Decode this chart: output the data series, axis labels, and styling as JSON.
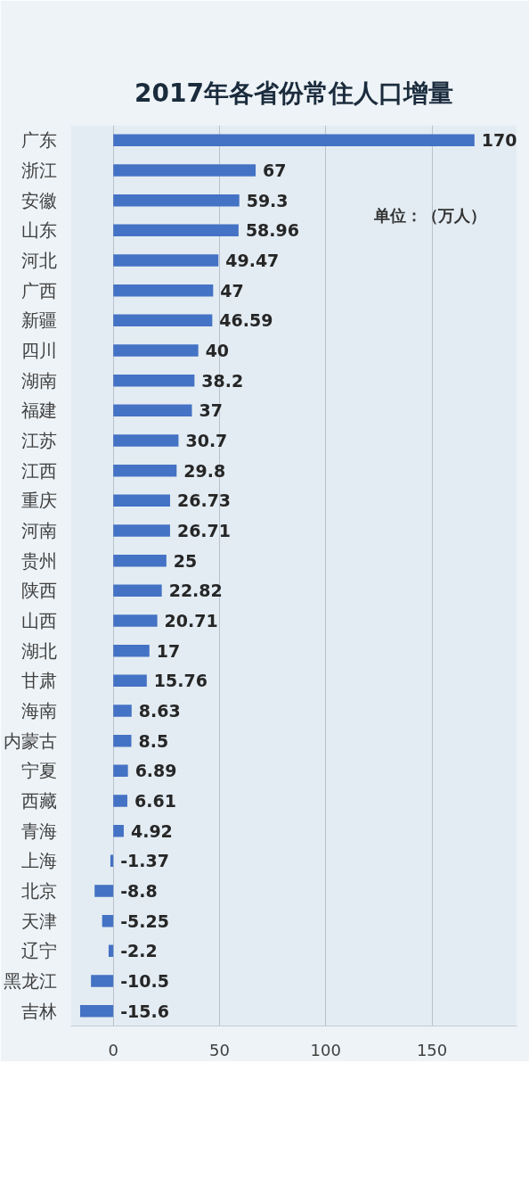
{
  "chart_data": {
    "type": "bar",
    "orientation": "horizontal",
    "title": "2017年各省份常住人口增量",
    "annotations": [
      "单位：（万人）"
    ],
    "categories": [
      "广东",
      "浙江",
      "安徽",
      "山东",
      "河北",
      "广西",
      "新疆",
      "四川",
      "湖南",
      "福建",
      "江苏",
      "江西",
      "重庆",
      "河南",
      "贵州",
      "陕西",
      "山西",
      "湖北",
      "甘肃",
      "海南",
      "内蒙古",
      "宁夏",
      "西藏",
      "青海",
      "上海",
      "北京",
      "天津",
      "辽宁",
      "黑龙江",
      "吉林"
    ],
    "values": [
      170,
      67,
      59.3,
      58.96,
      49.47,
      47,
      46.59,
      40,
      38.2,
      37,
      30.7,
      29.8,
      26.73,
      26.71,
      25,
      22.82,
      20.71,
      17,
      15.76,
      8.63,
      8.5,
      6.89,
      6.61,
      4.92,
      -1.37,
      -8.8,
      -5.25,
      -2.2,
      -10.5,
      -15.6
    ],
    "color": "#4472c4",
    "xlim": [
      -20,
      190
    ],
    "xticks": [
      0,
      50,
      100,
      150
    ],
    "grid": "x",
    "data_labels": true
  }
}
